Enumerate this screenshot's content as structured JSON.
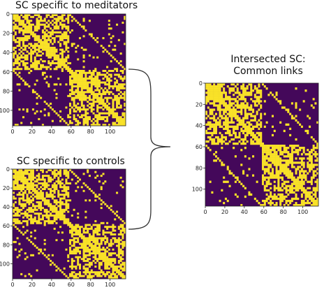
{
  "panels": [
    {
      "id": "meditators",
      "title": "SC specific to meditators",
      "seed": 7
    },
    {
      "id": "controls",
      "title": "SC specific to controls",
      "seed": 19
    },
    {
      "id": "intersected",
      "title_lines": [
        "Intersected SC:",
        "Common links"
      ],
      "seed": 31
    }
  ],
  "axis": {
    "x_ticks": [
      "0",
      "20",
      "40",
      "60",
      "80",
      "100"
    ],
    "y_ticks": [
      "0",
      "20",
      "40",
      "60",
      "80",
      "100"
    ],
    "size": 116
  },
  "colors": {
    "background": "#44085a",
    "link": "#f9e228",
    "bracket": "#333333"
  }
}
